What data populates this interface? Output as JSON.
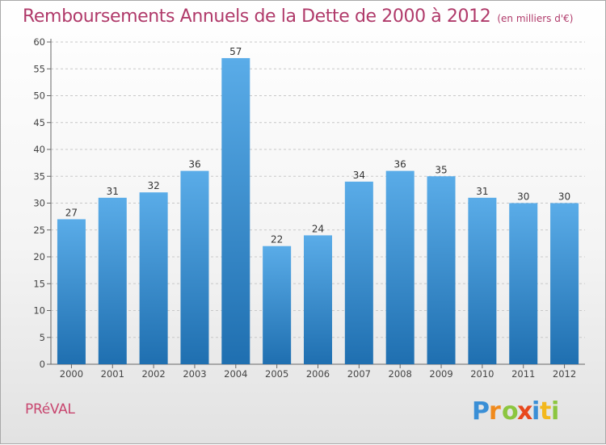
{
  "header": {
    "title": "Remboursements Annuels de la Dette de 2000 à 2012",
    "subtitle": "(en milliers d'€)"
  },
  "footer": {
    "commune": "PRéVAL",
    "logo_text": "Proxiti"
  },
  "colors": {
    "bar_top": "#5aace8",
    "bar_bottom": "#1f6fb0",
    "title": "#b03a6a",
    "commune": "#c8466f"
  },
  "chart_data": {
    "type": "bar",
    "categories": [
      "2000",
      "2001",
      "2002",
      "2003",
      "2004",
      "2005",
      "2006",
      "2007",
      "2008",
      "2009",
      "2010",
      "2011",
      "2012"
    ],
    "values": [
      27,
      31,
      32,
      36,
      57,
      22,
      24,
      34,
      36,
      35,
      31,
      30,
      30
    ],
    "ylim": [
      0,
      60
    ],
    "yticks": [
      0,
      5,
      10,
      15,
      20,
      25,
      30,
      35,
      40,
      45,
      50,
      55,
      60
    ],
    "grid": "horizontal dashed",
    "legend": "none",
    "xlabel": "",
    "ylabel": ""
  }
}
